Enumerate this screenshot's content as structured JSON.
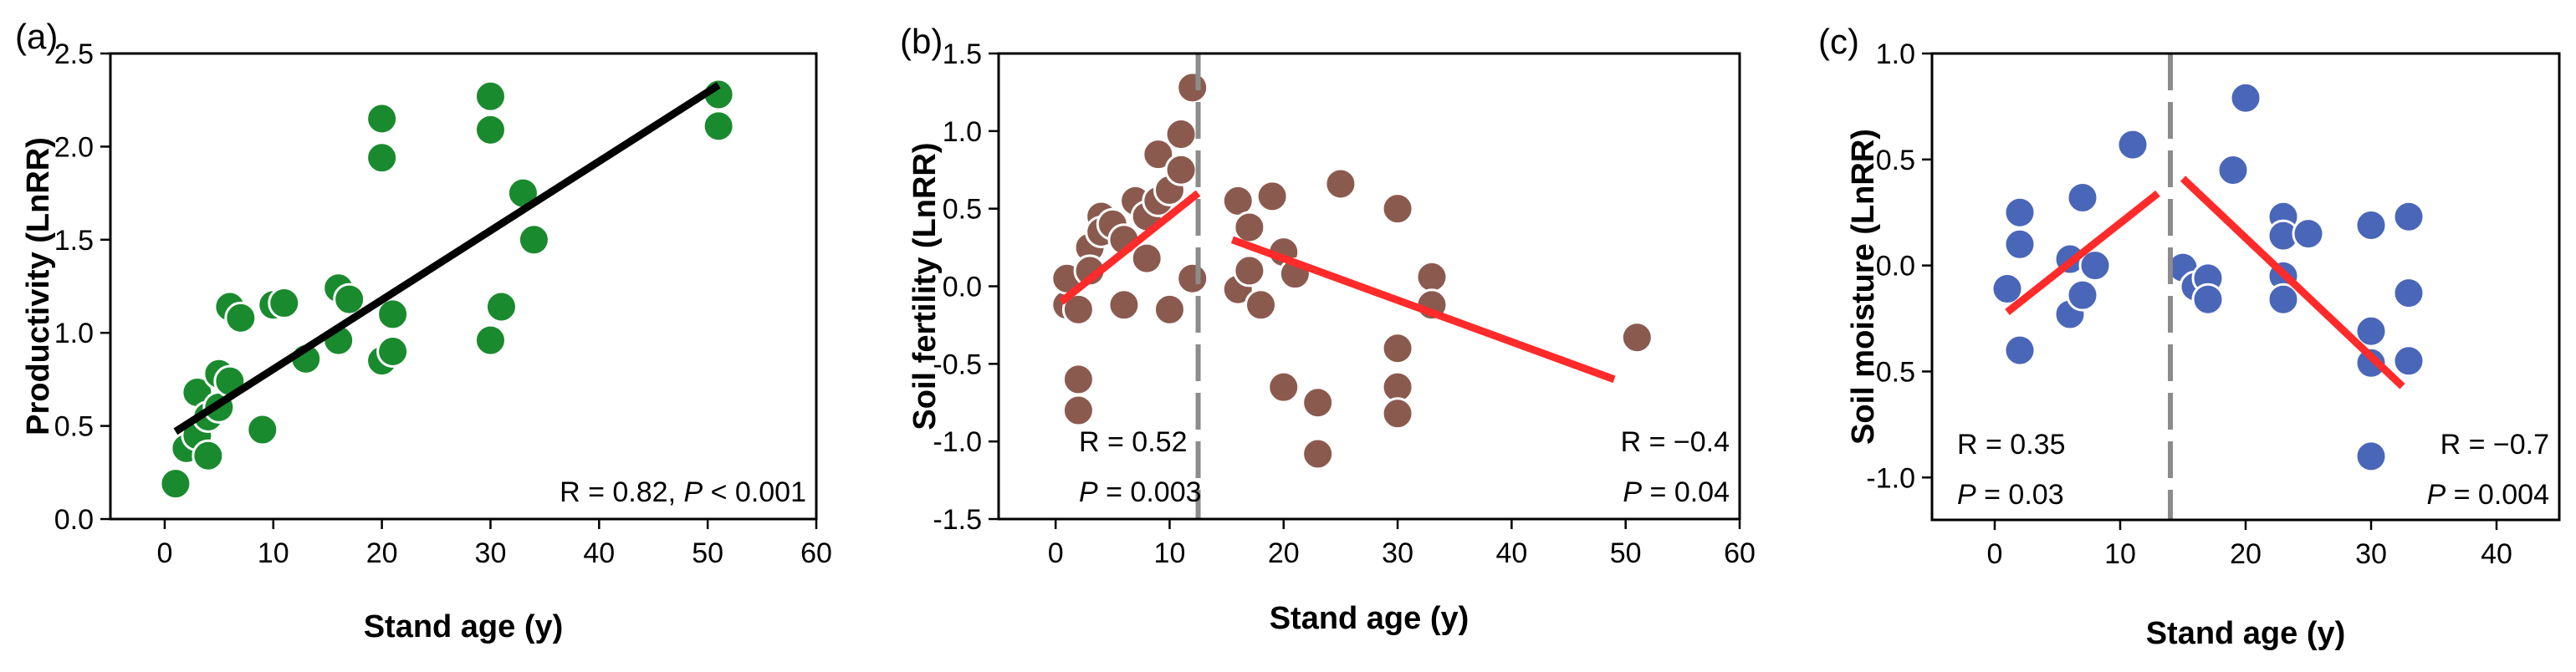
{
  "colors": {
    "green_points": "#1a8a2e",
    "brown_points": "#8b5a4e",
    "blue_points": "#4a66b8",
    "black_fit": "#000000",
    "red_fit": "#ff2a2a",
    "breakpoint_line": "#8c8c8c"
  },
  "chart_data": [
    {
      "type": "scatter",
      "panel": "(a)",
      "xlabel": "Stand age (y)",
      "ylabel": "Productivity (LnRR)",
      "xlim": [
        -5,
        60
      ],
      "ylim": [
        0,
        2.5
      ],
      "xticks": [
        "0",
        "10",
        "20",
        "30",
        "40",
        "50",
        "60"
      ],
      "xtick_values": [
        0,
        10,
        20,
        30,
        40,
        50,
        60
      ],
      "yticks": [
        "0.0",
        "0.5",
        "1.0",
        "1.5",
        "2.0",
        "2.5"
      ],
      "ytick_values": [
        0,
        0.5,
        1.0,
        1.5,
        2.0,
        2.5
      ],
      "point_color": "#1a8a2e",
      "points": [
        [
          1,
          0.19
        ],
        [
          2,
          0.38
        ],
        [
          3,
          0.45
        ],
        [
          3,
          0.68
        ],
        [
          4,
          0.34
        ],
        [
          4,
          0.55
        ],
        [
          5,
          0.78
        ],
        [
          5,
          0.6
        ],
        [
          6,
          0.74
        ],
        [
          6,
          1.14
        ],
        [
          7,
          1.08
        ],
        [
          9,
          0.48
        ],
        [
          10,
          1.15
        ],
        [
          11,
          1.16
        ],
        [
          13,
          0.86
        ],
        [
          16,
          1.24
        ],
        [
          16,
          0.96
        ],
        [
          17,
          1.18
        ],
        [
          20,
          2.15
        ],
        [
          20,
          1.94
        ],
        [
          20,
          0.85
        ],
        [
          21,
          1.1
        ],
        [
          21,
          0.9
        ],
        [
          30,
          2.27
        ],
        [
          30,
          2.09
        ],
        [
          30,
          0.96
        ],
        [
          31,
          1.14
        ],
        [
          33,
          1.75
        ],
        [
          34,
          1.5
        ],
        [
          51,
          2.28
        ],
        [
          51,
          2.11
        ]
      ],
      "fits": [
        {
          "x": [
            1,
            51
          ],
          "y": [
            0.47,
            2.33
          ],
          "color": "#000000"
        }
      ],
      "annotations": [
        {
          "parts": [
            {
              "text": "R = 0.82, ",
              "italic": false
            },
            {
              "text": "P",
              "italic": true
            },
            {
              "text": " < 0.001",
              "italic": false
            }
          ],
          "pos": "bottom-right"
        }
      ]
    },
    {
      "type": "scatter",
      "panel": "(b)",
      "xlabel": "Stand age (y)",
      "ylabel": "Soil fertility (LnRR)",
      "xlim": [
        -5,
        60
      ],
      "ylim": [
        -1.5,
        1.5
      ],
      "xticks": [
        "0",
        "10",
        "20",
        "30",
        "40",
        "50",
        "60"
      ],
      "xtick_values": [
        0,
        10,
        20,
        30,
        40,
        50,
        60
      ],
      "yticks": [
        "-1.5",
        "-1.0",
        "-0.5",
        "0.0",
        "0.5",
        "1.0",
        "1.5"
      ],
      "ytick_values": [
        -1.5,
        -1.0,
        -0.5,
        0,
        0.5,
        1.0,
        1.5
      ],
      "point_color": "#8b5a4e",
      "breakpoint_x": 12.5,
      "points": [
        [
          1,
          -0.12
        ],
        [
          1,
          0.05
        ],
        [
          2,
          -0.6
        ],
        [
          2,
          -0.8
        ],
        [
          2,
          -0.15
        ],
        [
          3,
          0.25
        ],
        [
          3,
          0.1
        ],
        [
          4,
          0.45
        ],
        [
          4,
          0.35
        ],
        [
          5,
          0.4
        ],
        [
          6,
          0.3
        ],
        [
          6,
          -0.12
        ],
        [
          7,
          0.55
        ],
        [
          8,
          0.18
        ],
        [
          8,
          0.45
        ],
        [
          9,
          0.85
        ],
        [
          9,
          0.55
        ],
        [
          10,
          0.62
        ],
        [
          10,
          -0.15
        ],
        [
          11,
          0.98
        ],
        [
          11,
          0.75
        ],
        [
          12,
          1.28
        ],
        [
          12,
          0.05
        ],
        [
          16,
          0.55
        ],
        [
          16,
          -0.02
        ],
        [
          17,
          0.38
        ],
        [
          17,
          0.1
        ],
        [
          18,
          -0.12
        ],
        [
          19,
          0.58
        ],
        [
          20,
          0.22
        ],
        [
          20,
          -0.65
        ],
        [
          21,
          0.08
        ],
        [
          23,
          -0.75
        ],
        [
          23,
          -1.08
        ],
        [
          25,
          0.66
        ],
        [
          30,
          0.5
        ],
        [
          30,
          -0.4
        ],
        [
          30,
          -0.65
        ],
        [
          30,
          -0.82
        ],
        [
          33,
          0.06
        ],
        [
          33,
          -0.12
        ],
        [
          51,
          -0.33
        ]
      ],
      "fits": [
        {
          "x": [
            0.5,
            12.5
          ],
          "y": [
            -0.1,
            0.6
          ],
          "color": "#ff2a2a"
        },
        {
          "x": [
            15.5,
            49
          ],
          "y": [
            0.3,
            -0.6
          ],
          "color": "#ff2a2a"
        }
      ],
      "annotations": [
        {
          "parts": [
            {
              "text": "R = 0.52",
              "italic": false
            }
          ],
          "pos": "left-1"
        },
        {
          "parts": [
            {
              "text": "P",
              "italic": true
            },
            {
              "text": " = 0.003",
              "italic": false
            }
          ],
          "pos": "left-2"
        },
        {
          "parts": [
            {
              "text": "R = −0.4",
              "italic": false
            }
          ],
          "pos": "right-1"
        },
        {
          "parts": [
            {
              "text": "P",
              "italic": true
            },
            {
              "text": " = 0.04",
              "italic": false
            }
          ],
          "pos": "right-2"
        }
      ]
    },
    {
      "type": "scatter",
      "panel": "(c)",
      "xlabel": "Stand age (y)",
      "ylabel": "Soil moisture (LnRR)",
      "xlim": [
        -5,
        45
      ],
      "ylim": [
        -1.2,
        1.0
      ],
      "xticks": [
        "0",
        "10",
        "20",
        "30",
        "40"
      ],
      "xtick_values": [
        0,
        10,
        20,
        30,
        40
      ],
      "yticks": [
        "-1.0",
        "-0.5",
        "0.0",
        "0.5",
        "1.0"
      ],
      "ytick_values": [
        -1.0,
        -0.5,
        0,
        0.5,
        1.0
      ],
      "point_color": "#4a66b8",
      "breakpoint_x": 14,
      "points": [
        [
          1,
          -0.11
        ],
        [
          2,
          0.25
        ],
        [
          2,
          0.1
        ],
        [
          2,
          -0.4
        ],
        [
          6,
          -0.23
        ],
        [
          6,
          0.03
        ],
        [
          7,
          0.32
        ],
        [
          7,
          -0.14
        ],
        [
          8,
          0.0
        ],
        [
          11,
          0.57
        ],
        [
          15,
          -0.01
        ],
        [
          16,
          -0.1
        ],
        [
          17,
          -0.06
        ],
        [
          17,
          -0.16
        ],
        [
          19,
          0.45
        ],
        [
          20,
          0.79
        ],
        [
          23,
          0.23
        ],
        [
          23,
          0.14
        ],
        [
          23,
          -0.05
        ],
        [
          23,
          -0.16
        ],
        [
          25,
          0.15
        ],
        [
          30,
          0.19
        ],
        [
          30,
          -0.31
        ],
        [
          30,
          -0.46
        ],
        [
          30,
          -0.9
        ],
        [
          33,
          0.23
        ],
        [
          33,
          -0.13
        ],
        [
          33,
          -0.45
        ]
      ],
      "fits": [
        {
          "x": [
            1,
            13
          ],
          "y": [
            -0.22,
            0.34
          ],
          "color": "#ff2a2a"
        },
        {
          "x": [
            15,
            32.5
          ],
          "y": [
            0.41,
            -0.57
          ],
          "color": "#ff2a2a"
        }
      ],
      "annotations": [
        {
          "parts": [
            {
              "text": "R = 0.35",
              "italic": false
            }
          ],
          "pos": "left-1"
        },
        {
          "parts": [
            {
              "text": "P",
              "italic": true
            },
            {
              "text": " = 0.03",
              "italic": false
            }
          ],
          "pos": "left-2"
        },
        {
          "parts": [
            {
              "text": "R = −0.7",
              "italic": false
            }
          ],
          "pos": "right-1"
        },
        {
          "parts": [
            {
              "text": "P",
              "italic": true
            },
            {
              "text": " = 0.004",
              "italic": false
            }
          ],
          "pos": "right-2"
        }
      ]
    }
  ]
}
